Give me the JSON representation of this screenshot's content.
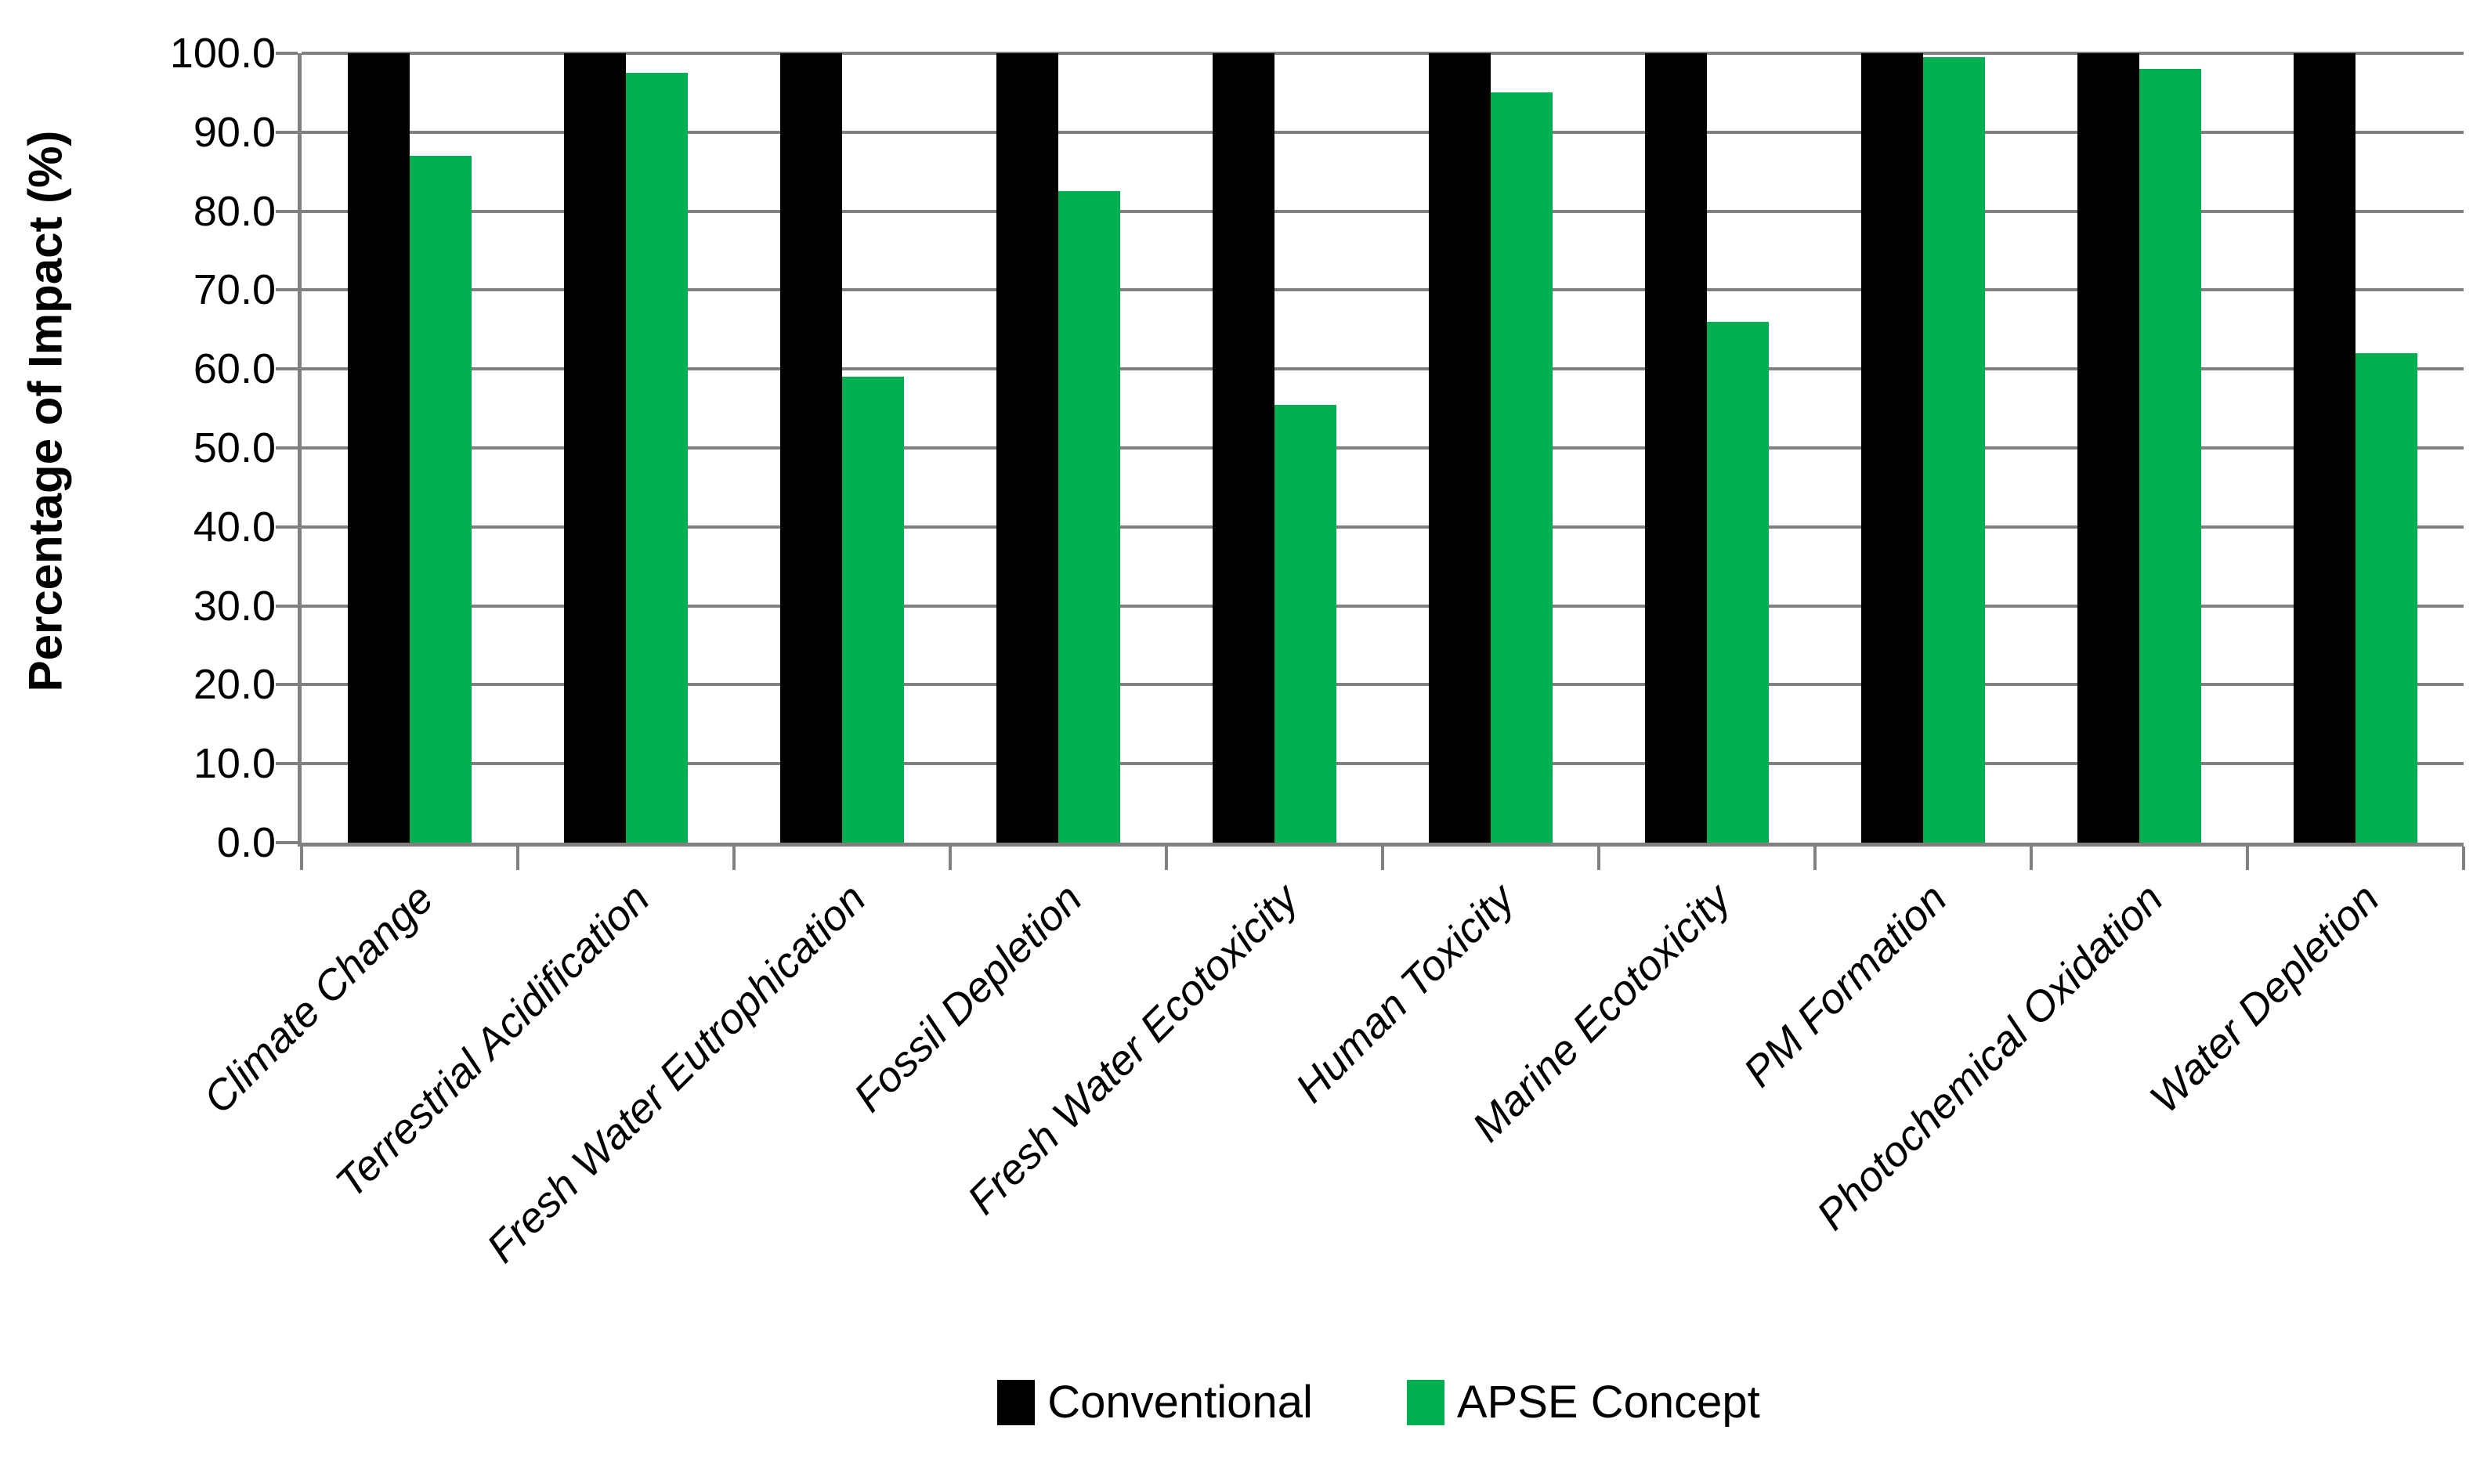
{
  "chart_data": {
    "type": "bar",
    "title": "",
    "xlabel": "",
    "ylabel": "Percentage of Impact (%)",
    "ylim": [
      0,
      100
    ],
    "y_ticks": [
      "100.0",
      "90.0",
      "80.0",
      "70.0",
      "60.0",
      "50.0",
      "40.0",
      "30.0",
      "20.0",
      "10.0",
      "0.0"
    ],
    "grid": true,
    "legend_position": "bottom",
    "categories": [
      "Climate Change",
      "Terrestrial Acidification",
      "Fresh Water Eutrophication",
      "Fossil Depletion",
      "Fresh Water Ecotoxicity",
      "Human Toxicity",
      "Marine Ecotoxicity",
      "PM Formation",
      "Photochemical Oxidation",
      "Water Depletion"
    ],
    "series": [
      {
        "name": "Conventional",
        "color": "#000000",
        "values": [
          100.0,
          100.0,
          100.0,
          100.0,
          100.0,
          100.0,
          100.0,
          100.0,
          100.0,
          100.0
        ]
      },
      {
        "name": "APSE Concept",
        "color": "#00b050",
        "values": [
          87.0,
          97.5,
          59.0,
          82.5,
          55.5,
          95.0,
          66.0,
          99.5,
          98.0,
          62.0
        ]
      }
    ]
  },
  "colors": {
    "background": "#ffffff",
    "grid": "#808080",
    "axis": "#808080",
    "text": "#000000"
  }
}
